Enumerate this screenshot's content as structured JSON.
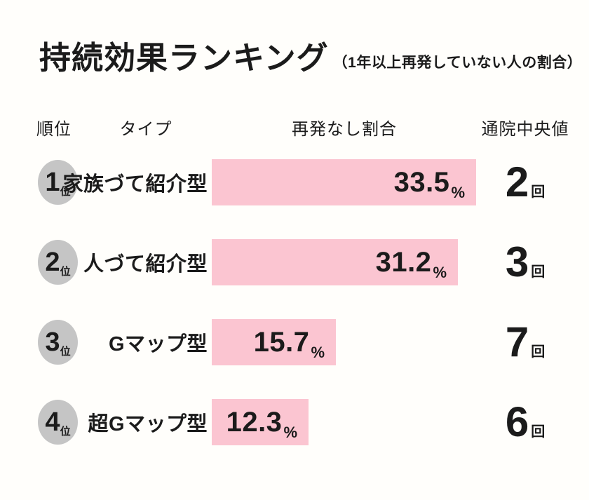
{
  "title": {
    "main": "持続効果ランキング",
    "note": "（1年以上再発していない人の割合）"
  },
  "columns": {
    "rank": "順位",
    "type": "タイプ",
    "rate": "再発なし割合",
    "visits": "通院中央値"
  },
  "labels": {
    "rank_suffix": "位",
    "percent_suffix": "%",
    "visits_suffix": "回"
  },
  "colors": {
    "bar": "#FBC5D1",
    "badge": "#C5C5C5",
    "text": "#1B1B1B",
    "background": "#FFFEFB"
  },
  "rows": [
    {
      "rank": "1",
      "type": "家族づて紹介型",
      "rate": "33.5",
      "visits": "2"
    },
    {
      "rank": "2",
      "type": "人づて紹介型",
      "rate": "31.2",
      "visits": "3"
    },
    {
      "rank": "3",
      "type": "Gマップ型",
      "rate": "15.7",
      "visits": "7"
    },
    {
      "rank": "4",
      "type": "超Gマップ型",
      "rate": "12.3",
      "visits": "6"
    }
  ],
  "chart_data": {
    "type": "bar",
    "orientation": "horizontal",
    "title": "持続効果ランキング（1年以上再発していない人の割合）",
    "categories": [
      "家族づて紹介型",
      "人づて紹介型",
      "Gマップ型",
      "超Gマップ型"
    ],
    "series": [
      {
        "name": "再発なし割合(%)",
        "values": [
          33.5,
          31.2,
          15.7,
          12.3
        ]
      },
      {
        "name": "通院中央値(回)",
        "values": [
          2,
          3,
          7,
          6
        ]
      }
    ],
    "ranks": [
      1,
      2,
      3,
      4
    ],
    "xlim": [
      0,
      35
    ],
    "grid": false,
    "legend": "none",
    "data_labels": "inside-end"
  }
}
